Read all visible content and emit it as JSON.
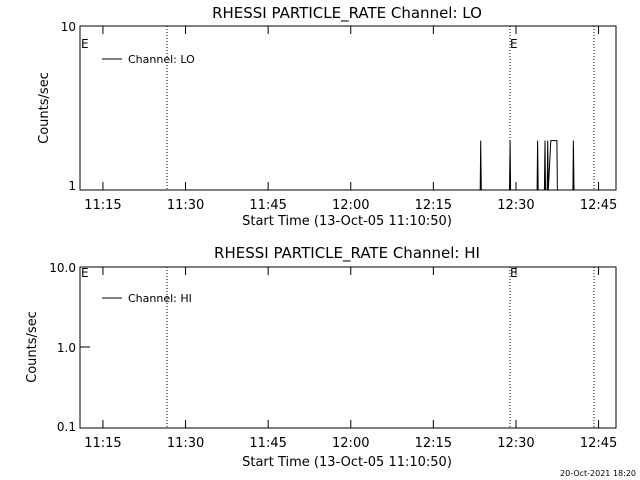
{
  "chart_data": [
    {
      "type": "line",
      "title": "RHESSI PARTICLE_RATE Channel: LO",
      "xlabel": "Start Time (13-Oct-05 11:10:50)",
      "ylabel": "Counts/sec",
      "yscale": "log",
      "ylim": [
        1,
        10
      ],
      "yticks": [
        "10",
        "1"
      ],
      "xticks": [
        "11:15",
        "11:30",
        "11:45",
        "12:00",
        "12:15",
        "12:30",
        "12:45"
      ],
      "legend": "Channel: LO",
      "legend_position": "top-left",
      "markers": [
        {
          "label": "E"
        },
        {
          "label": "E"
        }
      ],
      "series": [
        {
          "name": "Channel: LO",
          "x": [
            "12:23:30",
            "12:23:36",
            "12:23:42",
            "12:28:50",
            "12:28:56",
            "12:29:02",
            "12:33:50",
            "12:33:56",
            "12:34:02",
            "12:35:10",
            "12:35:16",
            "12:35:22",
            "12:35:40",
            "12:35:46",
            "12:35:52",
            "12:36:20",
            "12:36:26",
            "12:37:20",
            "12:37:26",
            "12:37:32",
            "12:40:20",
            "12:40:26",
            "12:40:32"
          ],
          "values": [
            1,
            2,
            1,
            1,
            2,
            1,
            1,
            2,
            1,
            1,
            2,
            1,
            1,
            2,
            1,
            2,
            2,
            2,
            2,
            1,
            1,
            2,
            1
          ]
        }
      ]
    },
    {
      "type": "line",
      "title": "RHESSI PARTICLE_RATE Channel: HI",
      "xlabel": "Start Time (13-Oct-05 11:10:50)",
      "ylabel": "Counts/sec",
      "yscale": "log",
      "ylim": [
        0.1,
        10
      ],
      "yticks": [
        "10.0",
        "1.0",
        "0.1"
      ],
      "xticks": [
        "11:15",
        "11:30",
        "11:45",
        "12:00",
        "12:15",
        "12:30",
        "12:45"
      ],
      "legend": "Channel: HI",
      "legend_position": "top-left",
      "markers": [
        {
          "label": "E"
        },
        {
          "label": "E"
        }
      ],
      "series": [
        {
          "name": "Channel: HI",
          "x": [],
          "values": []
        }
      ]
    }
  ],
  "footer": {
    "timestamp": "20-Oct-2021 18:20"
  }
}
